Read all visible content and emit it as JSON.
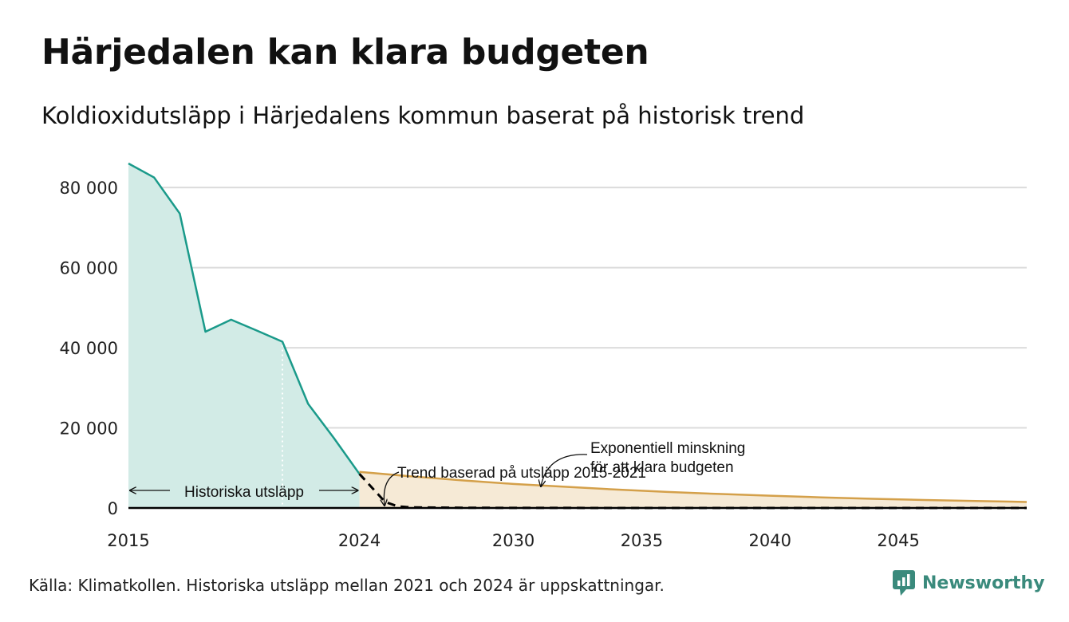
{
  "title": "Härjedalen kan klara budgeten",
  "subtitle": "Koldioxidutsläpp i Härjedalens kommun baserat på historisk trend",
  "source": "Källa: Klimatkollen. Historiska utsläpp mellan 2021 och 2024 är uppskattningar.",
  "brand": {
    "name": "Newsworthy",
    "icon": "newsworthy-logo-icon",
    "color": "#3a8a7c"
  },
  "colors": {
    "historical_line": "#1a9a8a",
    "historical_fill": "#d2ebe6",
    "trend_line": "#d4a04a",
    "trend_fill": "#f6ead6",
    "exponential_line": "#000000",
    "grid": "#dcdcdc"
  },
  "chart_data": {
    "type": "area",
    "xlim": [
      2015,
      2050
    ],
    "ylim": [
      0,
      86000
    ],
    "x_ticks": [
      {
        "value": 2015,
        "label": "2015"
      },
      {
        "value": 2024,
        "label": "2024"
      },
      {
        "value": 2030,
        "label": "2030"
      },
      {
        "value": 2035,
        "label": "2035"
      },
      {
        "value": 2040,
        "label": "2040"
      },
      {
        "value": 2045,
        "label": "2045"
      }
    ],
    "y_ticks": [
      {
        "value": 0,
        "label": "0"
      },
      {
        "value": 20000,
        "label": "20 000"
      },
      {
        "value": 40000,
        "label": "40 000"
      },
      {
        "value": 60000,
        "label": "60 000"
      },
      {
        "value": 80000,
        "label": "80 000"
      }
    ],
    "grid": true,
    "series": [
      {
        "key": "historical",
        "x": [
          2015,
          2016,
          2017,
          2018,
          2019,
          2020,
          2021,
          2022,
          2023,
          2024
        ],
        "y": [
          86000,
          82500,
          73500,
          44000,
          47000,
          44300,
          41500,
          26000,
          17500,
          8500
        ]
      },
      {
        "key": "trend",
        "x": [
          2024,
          2026,
          2028,
          2030,
          2032,
          2034,
          2036,
          2038,
          2040,
          2042,
          2044,
          2046,
          2048,
          2050
        ],
        "y": [
          9000,
          7900,
          6900,
          6000,
          5300,
          4600,
          4000,
          3500,
          3050,
          2650,
          2300,
          2000,
          1750,
          1500
        ]
      },
      {
        "key": "exponential",
        "x": [
          2024,
          2025,
          2025.5,
          2026,
          2028,
          2030,
          2035,
          2040,
          2045,
          2050
        ],
        "y": [
          8500,
          1500,
          400,
          150,
          60,
          20,
          5,
          1,
          0,
          0
        ]
      }
    ],
    "estimate_start": 2021,
    "annotations": [
      {
        "text": "Historiska utsläpp"
      },
      {
        "text": "Trend baserad på utsläpp 2015-2021"
      },
      {
        "lines": [
          "Exponentiell minskning",
          "för att klara budgeten"
        ]
      }
    ]
  }
}
